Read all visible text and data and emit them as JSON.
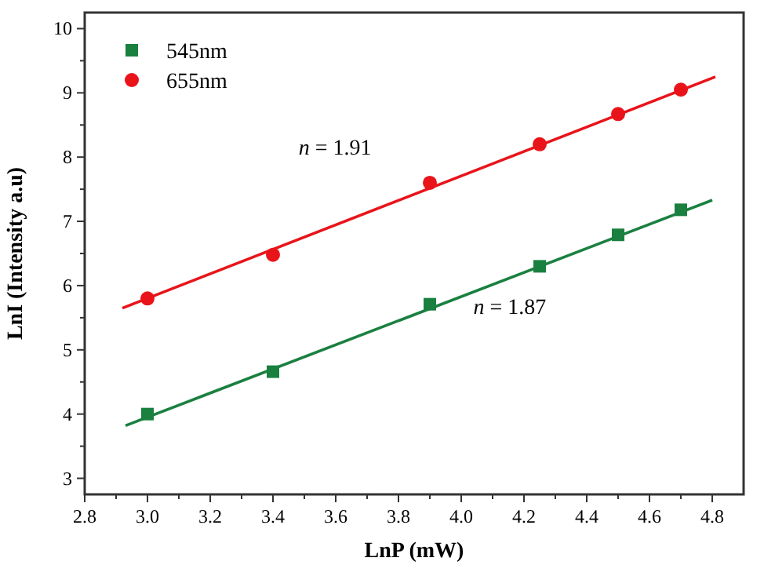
{
  "chart_data": {
    "type": "scatter",
    "xlabel": "LnP (mW)",
    "ylabel": "LnI (Intensity a.u)",
    "xlim": [
      2.8,
      4.9
    ],
    "ylim": [
      2.75,
      10.25
    ],
    "xticks": [
      {
        "value": 2.8,
        "label": "2.8"
      },
      {
        "value": 2.9,
        "label": null
      },
      {
        "value": 3.0,
        "label": "3.0"
      },
      {
        "value": 3.1,
        "label": null
      },
      {
        "value": 3.2,
        "label": "3.2"
      },
      {
        "value": 3.3,
        "label": null
      },
      {
        "value": 3.4,
        "label": "3.4"
      },
      {
        "value": 3.5,
        "label": null
      },
      {
        "value": 3.6,
        "label": "3.6"
      },
      {
        "value": 3.7,
        "label": null
      },
      {
        "value": 3.8,
        "label": "3.8"
      },
      {
        "value": 3.9,
        "label": null
      },
      {
        "value": 4.0,
        "label": "4.0"
      },
      {
        "value": 4.1,
        "label": null
      },
      {
        "value": 4.2,
        "label": "4.2"
      },
      {
        "value": 4.3,
        "label": null
      },
      {
        "value": 4.4,
        "label": "4.4"
      },
      {
        "value": 4.5,
        "label": null
      },
      {
        "value": 4.6,
        "label": "4.6"
      },
      {
        "value": 4.7,
        "label": null
      },
      {
        "value": 4.8,
        "label": "4.8"
      }
    ],
    "yticks": [
      3,
      {
        "value": 3.5,
        "label": null
      },
      4,
      {
        "value": 4.5,
        "label": null
      },
      5,
      {
        "value": 5.5,
        "label": null
      },
      6,
      {
        "value": 6.5,
        "label": null
      },
      7,
      {
        "value": 7.5,
        "label": null
      },
      8,
      {
        "value": 8.5,
        "label": null
      },
      9,
      {
        "value": 9.5,
        "label": null
      },
      10
    ],
    "legend": "top left",
    "grid": false,
    "series": [
      {
        "name": "545nm",
        "color": "#1a8040",
        "marker": "square",
        "x": [
          3.0,
          3.4,
          3.9,
          4.25,
          4.5,
          4.7
        ],
        "values": [
          4.0,
          4.66,
          5.71,
          6.3,
          6.79,
          7.18
        ]
      },
      {
        "name": "655nm",
        "color": "#e8141a",
        "marker": "circle",
        "x": [
          3.0,
          3.4,
          3.9,
          4.25,
          4.5,
          4.7
        ],
        "values": [
          5.8,
          6.48,
          7.6,
          8.2,
          8.67,
          9.05
        ]
      },
      {
        "type": "line",
        "color": "#1a8040",
        "marker": "none",
        "x": [
          2.93,
          4.8
        ],
        "values": [
          3.82,
          7.33
        ]
      },
      {
        "type": "line",
        "color": "#e8141a",
        "marker": "none",
        "x": [
          2.92,
          4.81
        ],
        "values": [
          5.65,
          9.25
        ]
      }
    ],
    "annotations": [
      "n = 1.91",
      "n = 1.87"
    ]
  }
}
